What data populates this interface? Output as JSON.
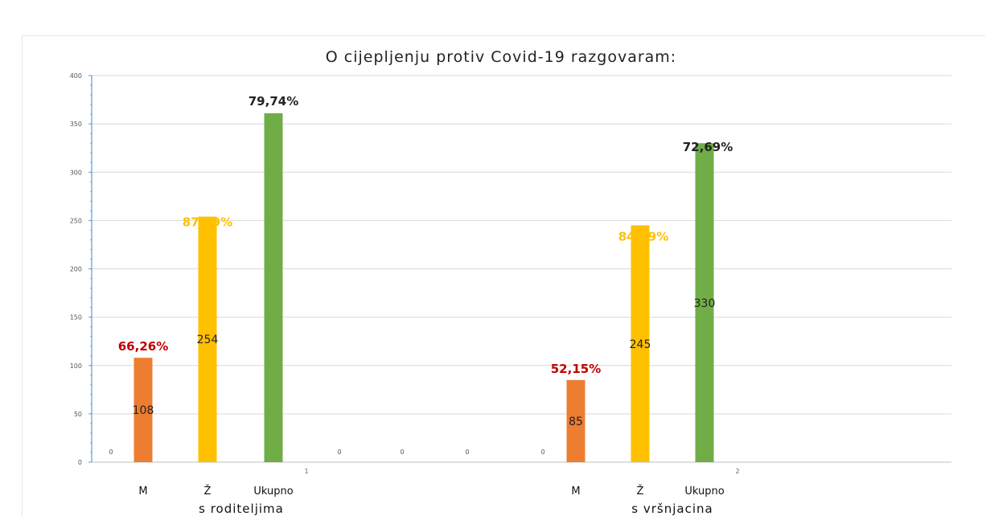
{
  "chart_data": {
    "type": "bar",
    "title": "O cijepljenju protiv Covid-19 razgovaram:",
    "ylim": [
      0,
      400
    ],
    "yticks": [
      "0",
      "50",
      "100",
      "150",
      "200",
      "250",
      "300",
      "350",
      "400"
    ],
    "grid": true,
    "groups": [
      {
        "name": "s roditeljima",
        "index_label": "1",
        "bars": [
          {
            "category": "M",
            "value": 108,
            "value_label": "108",
            "percent": "66,26%",
            "color": "#ed7d31",
            "percent_color": "#c00000"
          },
          {
            "category": "Ž",
            "value": 254,
            "value_label": "254",
            "percent": "87,69%",
            "color": "#ffc000",
            "percent_color": "#ffc000"
          },
          {
            "category": "Ukupno",
            "value": 361,
            "value_label": "",
            "percent": "79,74%",
            "color": "#70ad47",
            "percent_color": "#222222"
          }
        ]
      },
      {
        "name": "s vršnjacina",
        "index_label": "2",
        "bars": [
          {
            "category": "M",
            "value": 85,
            "value_label": "85",
            "percent": "52,15%",
            "color": "#ed7d31",
            "percent_color": "#c00000"
          },
          {
            "category": "Ž",
            "value": 245,
            "value_label": "245",
            "percent": "84,49%",
            "color": "#ffc000",
            "percent_color": "#ffc000"
          },
          {
            "category": "Ukupno",
            "value": 330,
            "value_label": "330",
            "percent": "72,69%",
            "color": "#70ad47",
            "percent_color": "#222222"
          }
        ]
      }
    ],
    "zero_labels": [
      "0",
      "0",
      "0",
      "0",
      "0"
    ]
  }
}
